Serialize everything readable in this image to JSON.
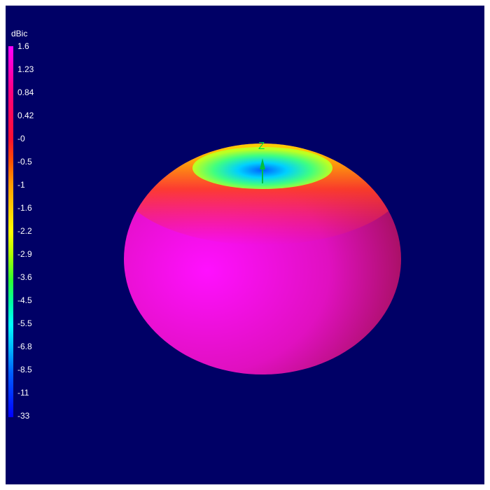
{
  "colorbar": {
    "unit": "dBic",
    "labels": [
      "1.6",
      "1.23",
      "0.84",
      "0.42",
      "-0",
      "-0.5",
      "-1",
      "-1.6",
      "-2.2",
      "-2.9",
      "-3.6",
      "-4.5",
      "-5.5",
      "-6.8",
      "-8.5",
      "-11",
      "-33"
    ]
  },
  "axis": {
    "label": "Z",
    "color": "#00c040"
  },
  "background": "#000066"
}
